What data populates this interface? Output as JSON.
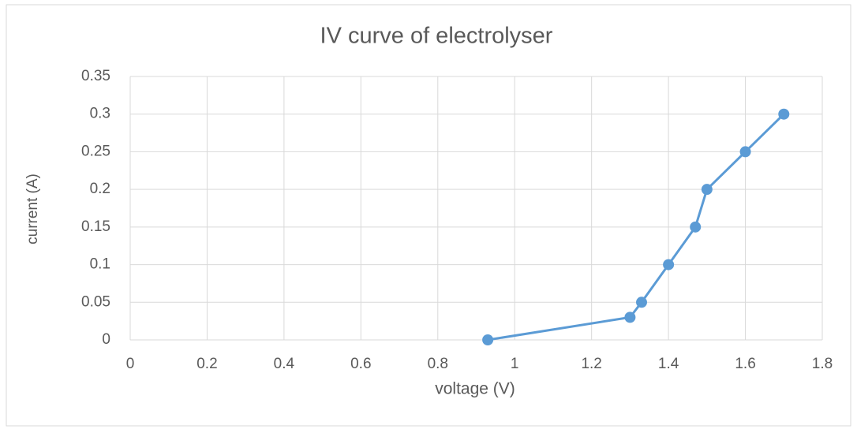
{
  "chart_data": {
    "type": "line",
    "title": "IV curve of electrolyser",
    "x_label": "voltage (V)",
    "y_label": "current (A)",
    "x": [
      0.93,
      1.3,
      1.33,
      1.4,
      1.47,
      1.5,
      1.6,
      1.7
    ],
    "series": [
      {
        "name": "current (A)",
        "color": "#5b9bd5",
        "values": [
          0,
          0.03,
          0.05,
          0.1,
          0.15,
          0.2,
          0.25,
          0.3
        ]
      }
    ],
    "xlim": [
      0,
      1.8
    ],
    "xticks": [
      0,
      0.2,
      0.4,
      0.6,
      0.8,
      1,
      1.2,
      1.4,
      1.6,
      1.8
    ],
    "ylim": [
      0,
      0.35
    ],
    "yticks": [
      0,
      0.05,
      0.1,
      0.15,
      0.2,
      0.25,
      0.3,
      0.35
    ],
    "grid": true,
    "markers": true
  }
}
